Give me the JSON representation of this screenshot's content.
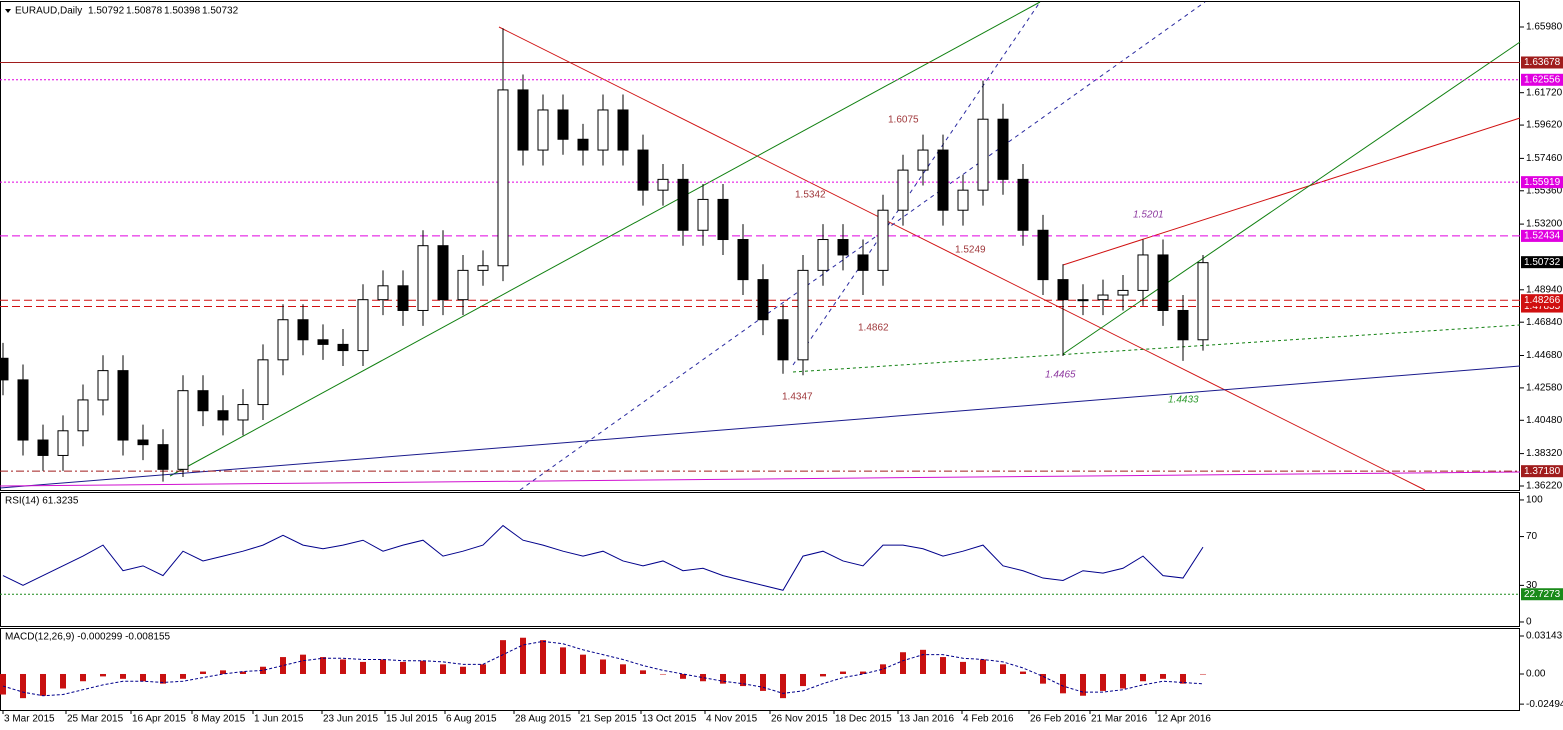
{
  "chart_data": [
    {
      "type": "candlestick",
      "title": "EURAUD,Daily",
      "quote": [
        "1.50792",
        "1.50878",
        "1.50398",
        "1.50732"
      ],
      "xlim": [
        -0.15,
        75.85
      ],
      "xticks": [
        {
          "value": 0,
          "label": "3 Mar 2015"
        },
        {
          "value": 3.15,
          "label": "25 Mar 2015"
        },
        {
          "value": 6.4,
          "label": "16 Apr 2015"
        },
        {
          "value": 9.45,
          "label": "8 May 2015"
        },
        {
          "value": 12.5,
          "label": "1 Jun 2015"
        },
        {
          "value": 15.95,
          "label": "23 Jun 2015"
        },
        {
          "value": 19.1,
          "label": "15 Jul 2015"
        },
        {
          "value": 22.1,
          "label": "6 Aug 2015"
        },
        {
          "value": 25.55,
          "label": "28 Aug 2015"
        },
        {
          "value": 28.8,
          "label": "21 Sep 2015"
        },
        {
          "value": 31.9,
          "label": "13 Oct 2015"
        },
        {
          "value": 35.1,
          "label": "4 Nov 2015"
        },
        {
          "value": 38.35,
          "label": "26 Nov 2015"
        },
        {
          "value": 41.55,
          "label": "18 Dec 2015"
        },
        {
          "value": 44.75,
          "label": "13 Jan 2016"
        },
        {
          "value": 47.95,
          "label": "4 Feb 2016"
        },
        {
          "value": 51.3,
          "label": "26 Feb 2016"
        },
        {
          "value": 54.35,
          "label": "21 Mar 2016"
        },
        {
          "value": 57.65,
          "label": "12 Apr 2016"
        }
      ],
      "ylim": [
        1.3596,
        1.676
      ],
      "yticks": [
        {
          "value": 1.6598,
          "label": "1.65980"
        },
        {
          "value": 1.6172,
          "label": "1.61720"
        },
        {
          "value": 1.5962,
          "label": "1.59620"
        },
        {
          "value": 1.5746,
          "label": "1.57460"
        },
        {
          "value": 1.5536,
          "label": "1.55360"
        },
        {
          "value": 1.532,
          "label": "1.53200"
        },
        {
          "value": 1.4894,
          "label": "1.48940"
        },
        {
          "value": 1.4684,
          "label": "1.46840"
        },
        {
          "value": 1.4468,
          "label": "1.44680"
        },
        {
          "value": 1.4258,
          "label": "1.42580"
        },
        {
          "value": 1.4048,
          "label": "1.40480"
        },
        {
          "value": 1.3832,
          "label": "1.38320"
        },
        {
          "value": 1.3622,
          "label": "1.36220"
        }
      ],
      "open": [
        1.445,
        1.431,
        1.392,
        1.382,
        1.398,
        1.418,
        1.437,
        1.392,
        1.389,
        1.373,
        1.424,
        1.411,
        1.405,
        1.415,
        1.444,
        1.47,
        1.457,
        1.454,
        1.45,
        1.483,
        1.492,
        1.476,
        1.518,
        1.483,
        1.502,
        1.505,
        1.619,
        1.58,
        1.606,
        1.587,
        1.58,
        1.606,
        1.58,
        1.554,
        1.561,
        1.528,
        1.548,
        1.522,
        1.496,
        1.47,
        1.444,
        1.502,
        1.522,
        1.512,
        1.502,
        1.541,
        1.567,
        1.58,
        1.541,
        1.554,
        1.6,
        1.561,
        1.528,
        1.496,
        1.483,
        1.483,
        1.486,
        1.489,
        1.512,
        1.476,
        1.457
      ],
      "high": [
        1.455,
        1.441,
        1.402,
        1.408,
        1.428,
        1.447,
        1.447,
        1.402,
        1.399,
        1.434,
        1.434,
        1.421,
        1.425,
        1.454,
        1.48,
        1.48,
        1.467,
        1.464,
        1.493,
        1.502,
        1.502,
        1.528,
        1.528,
        1.512,
        1.515,
        1.659,
        1.629,
        1.616,
        1.616,
        1.597,
        1.616,
        1.616,
        1.59,
        1.571,
        1.571,
        1.558,
        1.558,
        1.532,
        1.506,
        1.48,
        1.512,
        1.532,
        1.532,
        1.522,
        1.551,
        1.577,
        1.59,
        1.59,
        1.564,
        1.625,
        1.61,
        1.571,
        1.538,
        1.506,
        1.493,
        1.496,
        1.499,
        1.522,
        1.522,
        1.486,
        1.512
      ],
      "low": [
        1.421,
        1.382,
        1.372,
        1.372,
        1.388,
        1.408,
        1.382,
        1.379,
        1.365,
        1.368,
        1.401,
        1.395,
        1.395,
        1.405,
        1.434,
        1.447,
        1.444,
        1.44,
        1.44,
        1.473,
        1.466,
        1.466,
        1.473,
        1.473,
        1.492,
        1.495,
        1.57,
        1.57,
        1.577,
        1.57,
        1.57,
        1.57,
        1.544,
        1.544,
        1.518,
        1.518,
        1.512,
        1.486,
        1.46,
        1.435,
        1.434,
        1.492,
        1.502,
        1.486,
        1.492,
        1.531,
        1.557,
        1.531,
        1.531,
        1.544,
        1.551,
        1.518,
        1.486,
        1.4465,
        1.473,
        1.473,
        1.476,
        1.479,
        1.466,
        1.4433,
        1.45
      ],
      "close": [
        1.431,
        1.392,
        1.382,
        1.398,
        1.418,
        1.437,
        1.392,
        1.389,
        1.373,
        1.424,
        1.411,
        1.405,
        1.415,
        1.444,
        1.47,
        1.457,
        1.454,
        1.45,
        1.483,
        1.492,
        1.476,
        1.518,
        1.483,
        1.502,
        1.505,
        1.619,
        1.58,
        1.606,
        1.587,
        1.58,
        1.606,
        1.58,
        1.554,
        1.561,
        1.528,
        1.548,
        1.522,
        1.496,
        1.47,
        1.444,
        1.502,
        1.522,
        1.512,
        1.502,
        1.541,
        1.567,
        1.58,
        1.541,
        1.554,
        1.6,
        1.561,
        1.528,
        1.496,
        1.483,
        1.483,
        1.486,
        1.489,
        1.512,
        1.476,
        1.457,
        1.507
      ],
      "levels": [
        {
          "value": 1.63678,
          "label": "1.63678",
          "color": "#a01c1c",
          "style": "solid"
        },
        {
          "value": 1.62556,
          "label": "1.62556",
          "color": "#e000e0",
          "style": "dotted"
        },
        {
          "value": 1.55919,
          "label": "1.55919",
          "color": "#e000e0",
          "style": "dotted"
        },
        {
          "value": 1.52434,
          "label": "1.52434",
          "color": "#e000e0",
          "style": "dashed"
        },
        {
          "value": 1.50732,
          "label": "1.50732",
          "color": "#000000",
          "style": "none"
        },
        {
          "value": 1.47855,
          "label": "1.47855",
          "color": "#d01010",
          "style": "dashed"
        },
        {
          "value": 1.48266,
          "label": "1.48266",
          "color": "#d01010",
          "style": "dashed"
        },
        {
          "value": 1.3718,
          "label": "1.37180",
          "color": "#a01c1c",
          "style": "dashdot"
        }
      ],
      "annotations": [
        {
          "text": "1.6075",
          "color": "#a0393c",
          "italic": false
        },
        {
          "text": "1.5342",
          "color": "#a0393c",
          "italic": false
        },
        {
          "text": "1.5249",
          "color": "#a0393c",
          "italic": false
        },
        {
          "text": "1.4862",
          "color": "#a0393c",
          "italic": false
        },
        {
          "text": "1.4347",
          "color": "#a0393c",
          "italic": false
        },
        {
          "text": "1.4465",
          "color": "#8e3aa0",
          "italic": true
        },
        {
          "text": "1.4433",
          "color": "#2e9a2e",
          "italic": true
        },
        {
          "text": "1.5201",
          "color": "#8e3aa0",
          "italic": true
        }
      ]
    },
    {
      "type": "line",
      "title": "RSI(14) 61.3235",
      "color": "#00008b",
      "ylim": [
        -3.3,
        105.7
      ],
      "yticks": [
        100,
        70,
        30,
        0
      ],
      "level": {
        "value": 22.7273,
        "label": "22.7273",
        "color": "#1a8a1a"
      },
      "values": [
        38,
        30,
        38,
        46,
        54,
        63,
        42,
        46,
        38,
        58,
        50,
        54,
        58,
        63,
        71,
        63,
        60,
        63,
        67,
        58,
        63,
        67,
        54,
        58,
        63,
        79,
        67,
        63,
        58,
        54,
        58,
        50,
        46,
        50,
        42,
        44,
        38,
        34,
        30,
        26,
        54,
        58,
        50,
        46,
        63,
        63,
        60,
        54,
        58,
        63,
        46,
        42,
        36,
        34,
        42,
        40,
        44,
        54,
        38,
        36,
        61.3235
      ]
    },
    {
      "type": "macd",
      "title": "MACD(12,26,9) -0.000299 -0.008155",
      "color": "#c81010",
      "signal_color": "#00008b",
      "ylim": [
        -0.0298,
        0.0364
      ],
      "yticks": [
        0.03143,
        {
          "value": 0,
          "label": "0.00"
        },
        -0.02494
      ],
      "values": [
        -0.017,
        -0.02,
        -0.018,
        -0.012,
        -0.006,
        -0.002,
        -0.004,
        -0.006,
        -0.008,
        -0.004,
        0.002,
        0.003,
        0.002,
        0.006,
        0.014,
        0.016,
        0.014,
        0.012,
        0.01,
        0.012,
        0.01,
        0.011,
        0.008,
        0.006,
        0.008,
        0.028,
        0.03,
        0.028,
        0.022,
        0.016,
        0.012,
        0.008,
        0.003,
        0.0,
        -0.004,
        -0.006,
        -0.008,
        -0.01,
        -0.014,
        -0.02,
        -0.01,
        -0.002,
        0.002,
        0.002,
        0.008,
        0.018,
        0.02,
        0.014,
        0.01,
        0.012,
        0.008,
        0.002,
        -0.008,
        -0.016,
        -0.018,
        -0.014,
        -0.012,
        -0.006,
        -0.004,
        -0.008,
        -0.000299
      ],
      "signal": [
        -0.01,
        -0.015,
        -0.018,
        -0.017,
        -0.013,
        -0.009,
        -0.006,
        -0.006,
        -0.007,
        -0.006,
        -0.003,
        0.0,
        0.002,
        0.003,
        0.007,
        0.011,
        0.013,
        0.013,
        0.012,
        0.012,
        0.011,
        0.011,
        0.01,
        0.008,
        0.008,
        0.016,
        0.024,
        0.027,
        0.025,
        0.02,
        0.016,
        0.012,
        0.007,
        0.003,
        0.0,
        -0.003,
        -0.006,
        -0.008,
        -0.011,
        -0.016,
        -0.014,
        -0.008,
        -0.003,
        0.0,
        0.004,
        0.011,
        0.016,
        0.016,
        0.013,
        0.012,
        0.01,
        0.005,
        -0.002,
        -0.01,
        -0.015,
        -0.015,
        -0.013,
        -0.009,
        -0.006,
        -0.007,
        -0.008155
      ]
    }
  ]
}
